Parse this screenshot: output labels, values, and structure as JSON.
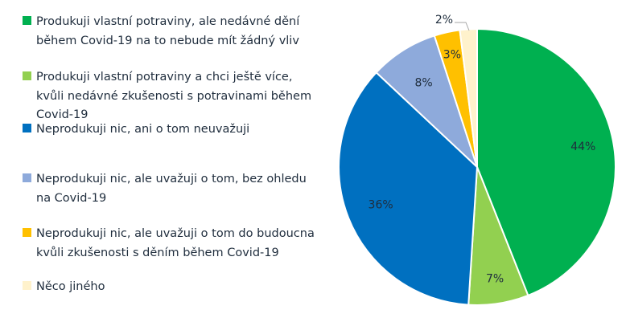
{
  "chart_data": {
    "type": "pie",
    "categories": [
      "Produkuji vlastní potraviny, ale nedávné dění během Covid-19 na to nebude mít žádný vliv",
      "Produkuji vlastní potraviny a chci ještě více, kvůli nedávné zkušenosti s potravinami během Covid-19",
      "Neprodukuji nic, ani o tom neuvažuji",
      "Neprodukuji nic, ale uvažuji o tom, bez ohledu na Covid-19",
      "Neprodukuji nic, ale uvažuji o tom do budoucna kvůli zkušenosti s děním během Covid-19",
      "Něco jiného"
    ],
    "values": [
      44,
      7,
      36,
      8,
      3,
      2
    ],
    "labels": [
      "44%",
      "7%",
      "36%",
      "8%",
      "3%",
      "2%"
    ],
    "colors": [
      "#00b050",
      "#92d050",
      "#0070c0",
      "#8eaadb",
      "#ffc000",
      "#fff2cc"
    ],
    "legend_position": "left"
  }
}
